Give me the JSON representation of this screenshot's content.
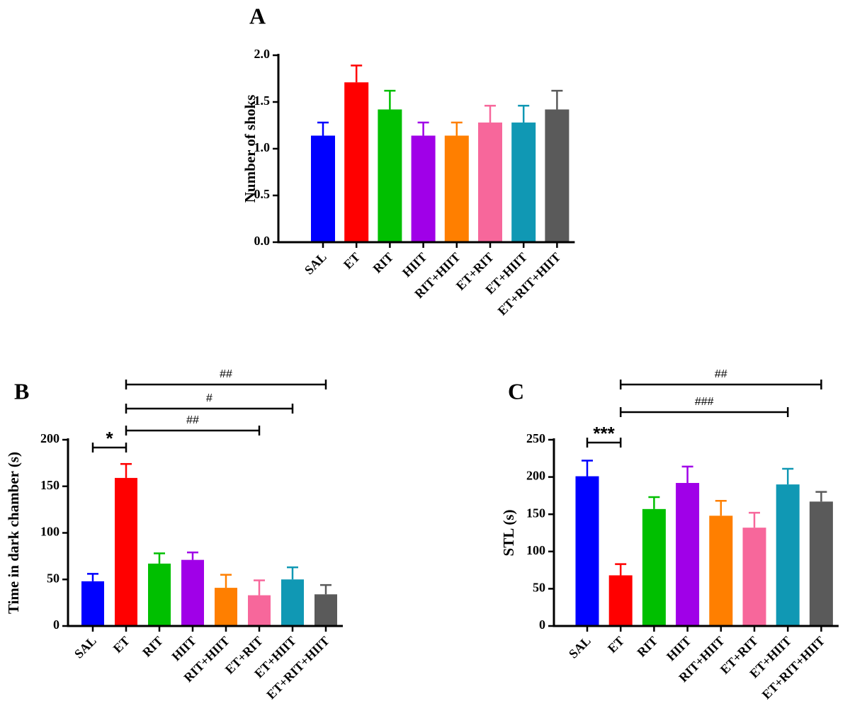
{
  "chart_data": [
    {
      "panel": "A",
      "type": "bar",
      "ylabel": "Number of shoks",
      "ylim": [
        0,
        2.0
      ],
      "yticks": [
        "0.0",
        "0.5",
        "1.0",
        "1.5",
        "2.0"
      ],
      "categories": [
        "SAL",
        "ET",
        "RIT",
        "HIIT",
        "RIT+HIIT",
        "ET+RIT",
        "ET+HIIT",
        "ET+RIT+HIIT"
      ],
      "values": [
        1.14,
        1.71,
        1.42,
        1.14,
        1.14,
        1.28,
        1.28,
        1.42
      ],
      "errors": [
        0.14,
        0.18,
        0.2,
        0.14,
        0.14,
        0.18,
        0.18,
        0.2
      ],
      "colors": [
        "#0000ff",
        "#ff0000",
        "#00bf00",
        "#a000e8",
        "#ff7f00",
        "#f7679b",
        "#1098b4",
        "#5a5a5a"
      ],
      "significance": []
    },
    {
      "panel": "B",
      "type": "bar",
      "ylabel": "Time in dark chamber (s)",
      "ylim": [
        0,
        200
      ],
      "yticks": [
        "0",
        "50",
        "100",
        "150",
        "200"
      ],
      "categories": [
        "SAL",
        "ET",
        "RIT",
        "HIIT",
        "RIT+HIIT",
        "ET+RIT",
        "ET+HIIT",
        "ET+RIT+HIIT"
      ],
      "values": [
        48,
        159,
        67,
        71,
        41,
        33,
        50,
        34
      ],
      "errors": [
        8,
        15,
        11,
        8,
        14,
        16,
        13,
        10
      ],
      "colors": [
        "#0000ff",
        "#ff0000",
        "#00bf00",
        "#a000e8",
        "#ff7f00",
        "#f7679b",
        "#1098b4",
        "#5a5a5a"
      ],
      "significance": [
        {
          "from": 0,
          "to": 1,
          "label": "*",
          "style": "star"
        },
        {
          "from": 1,
          "to": 5,
          "label": "##",
          "style": "hash"
        },
        {
          "from": 1,
          "to": 6,
          "label": "#",
          "style": "hash"
        },
        {
          "from": 1,
          "to": 7,
          "label": "##",
          "style": "hash"
        }
      ]
    },
    {
      "panel": "C",
      "type": "bar",
      "ylabel": "STL (s)",
      "ylim": [
        0,
        250
      ],
      "yticks": [
        "0",
        "50",
        "100",
        "150",
        "200",
        "250"
      ],
      "categories": [
        "SAL",
        "ET",
        "RIT",
        "HIIT",
        "RIT+HIIT",
        "ET+RIT",
        "ET+HIIT",
        "ET+RIT+HIIT"
      ],
      "values": [
        201,
        68,
        157,
        192,
        148,
        132,
        190,
        167
      ],
      "errors": [
        21,
        15,
        16,
        22,
        20,
        20,
        21,
        13
      ],
      "colors": [
        "#0000ff",
        "#ff0000",
        "#00bf00",
        "#a000e8",
        "#ff7f00",
        "#f7679b",
        "#1098b4",
        "#5a5a5a"
      ],
      "significance": [
        {
          "from": 0,
          "to": 1,
          "label": "***",
          "style": "star"
        },
        {
          "from": 1,
          "to": 6,
          "label": "###",
          "style": "hash"
        },
        {
          "from": 1,
          "to": 7,
          "label": "##",
          "style": "hash"
        }
      ]
    }
  ]
}
